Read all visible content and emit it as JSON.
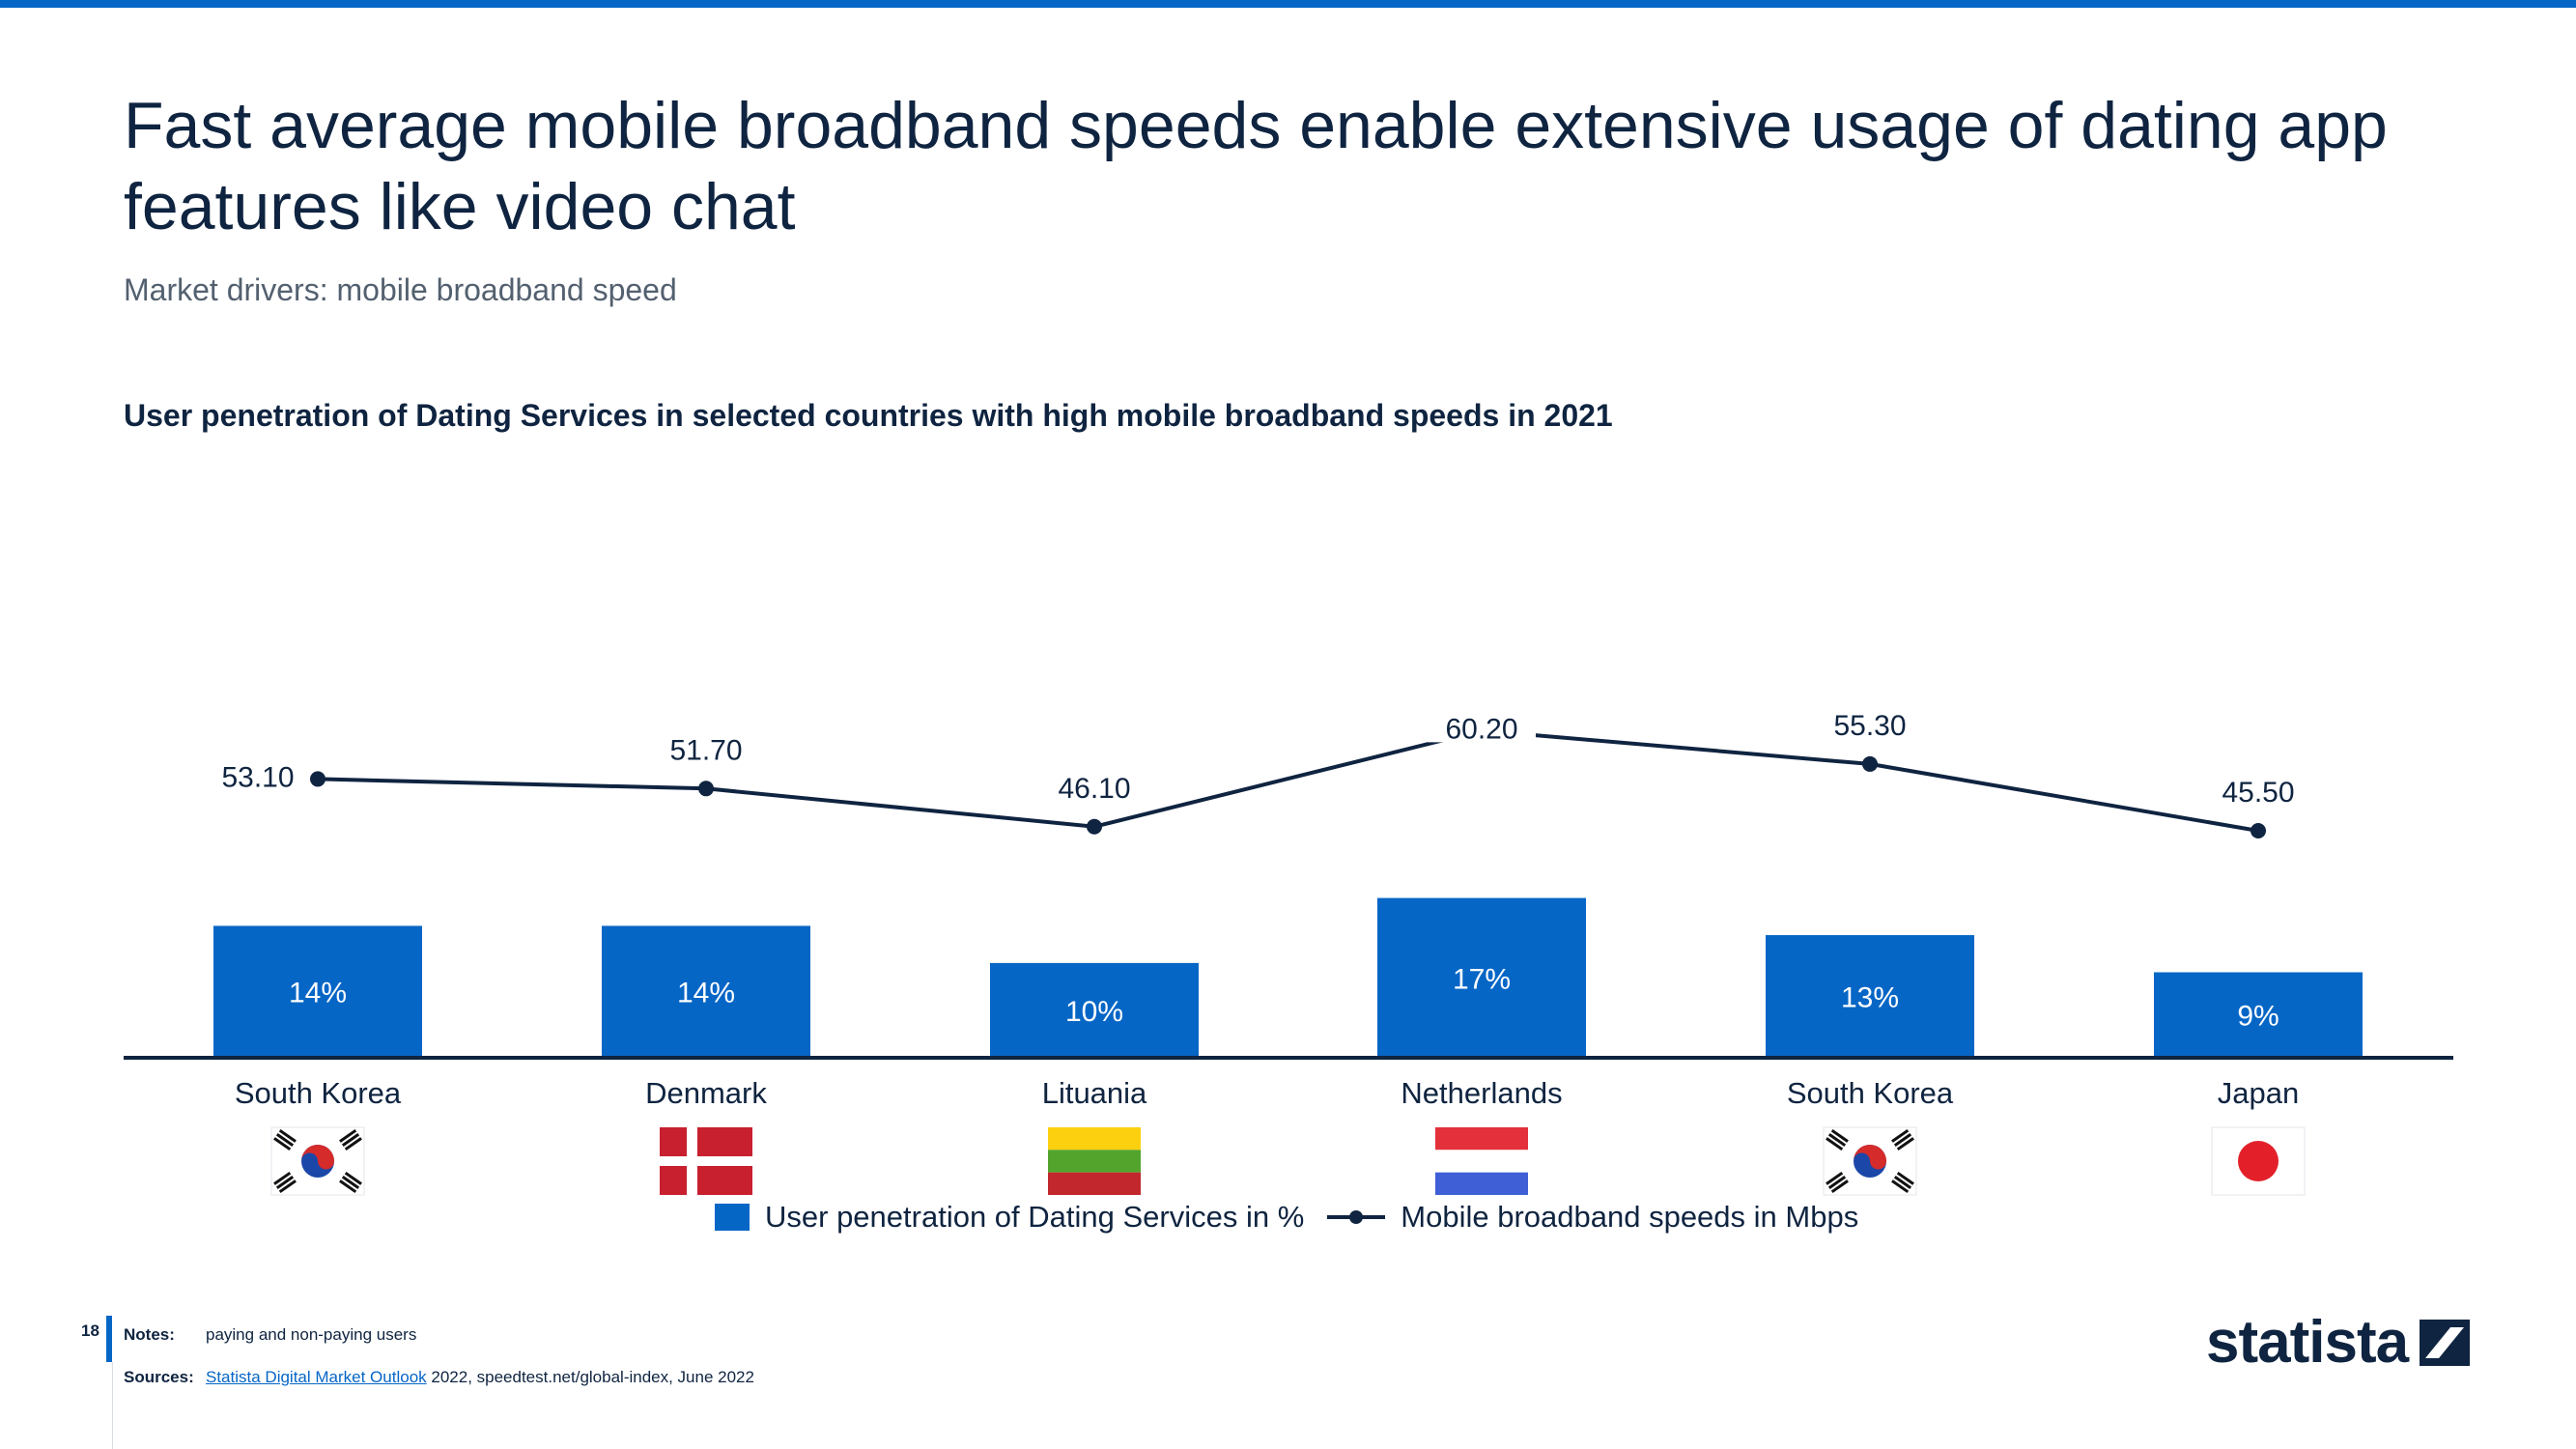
{
  "header": {
    "title": "Fast average mobile broadband speeds enable extensive usage of dating app features like video chat",
    "subtitle": "Market drivers: mobile broadband speed"
  },
  "chart_data": {
    "type": "bar",
    "title": "User penetration of Dating Services in selected countries with high mobile broadband speeds in 2021",
    "categories": [
      "South Korea",
      "Denmark",
      "Lituania",
      "Netherlands",
      "South Korea",
      "Japan"
    ],
    "flags": [
      "south-korea-flag",
      "denmark-flag",
      "lithuania-flag",
      "netherlands-flag",
      "south-korea-flag",
      "japan-flag"
    ],
    "series": [
      {
        "name": "User penetration of Dating Services in %",
        "type": "bar",
        "values": [
          14,
          14,
          10,
          17,
          13,
          9
        ],
        "labels": [
          "14%",
          "14%",
          "10%",
          "17%",
          "13%",
          "9%"
        ],
        "color": "#0666c6"
      },
      {
        "name": "Mobile broadband speeds in Mbps",
        "type": "line",
        "values": [
          53.1,
          51.7,
          46.1,
          60.2,
          55.3,
          45.5
        ],
        "labels": [
          "53.10",
          "51.70",
          "46.10",
          "60.20",
          "55.30",
          "45.50"
        ],
        "color": "#0f2440"
      }
    ],
    "legend_position": "bottom"
  },
  "footer": {
    "page_number": "18",
    "notes_label": "Notes:",
    "notes_text": "paying and non-paying users",
    "sources_label": "Sources:",
    "sources_link": "Statista Digital Market Outlook",
    "sources_text": " 2022, speedtest.net/global-index, June 2022",
    "logo_text": "statista"
  },
  "colors": {
    "accent": "#0666c6",
    "dark": "#0f2440"
  }
}
